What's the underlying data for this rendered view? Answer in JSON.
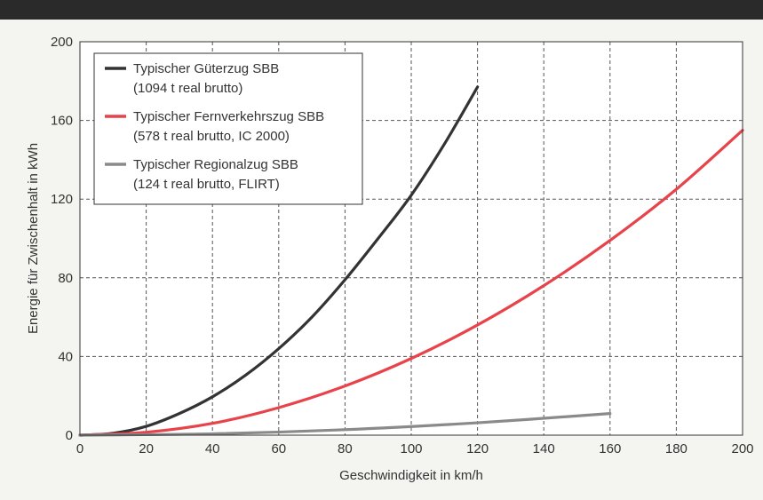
{
  "chart_data": {
    "type": "line",
    "title": "",
    "xlabel": "Geschwindigkeit in km/h",
    "ylabel": "Energie für Zwischenhalt in kWh",
    "xlim": [
      0,
      200
    ],
    "ylim": [
      0,
      200
    ],
    "xticks": [
      0,
      20,
      40,
      60,
      80,
      100,
      120,
      140,
      160,
      180,
      200
    ],
    "yticks": [
      0,
      40,
      80,
      120,
      160,
      200
    ],
    "grid": true,
    "legend_position": "top-left",
    "series": [
      {
        "name": "Typischer Güterzug SBB",
        "subtitle": "(1094 t real brutto)",
        "color": "#333333",
        "x": [
          0,
          10,
          20,
          30,
          40,
          50,
          60,
          70,
          80,
          90,
          100,
          110,
          120
        ],
        "y": [
          0,
          1,
          4.5,
          11,
          19.5,
          30.5,
          44,
          60,
          79,
          100,
          122,
          148,
          177
        ]
      },
      {
        "name": "Typischer Fernverkehrszug SBB",
        "subtitle": "(578 t real brutto, IC 2000)",
        "color": "#e8424a",
        "x": [
          0,
          20,
          40,
          60,
          80,
          100,
          120,
          140,
          160,
          180,
          200
        ],
        "y": [
          0,
          1.5,
          6,
          14,
          25,
          39,
          56,
          76,
          99,
          125,
          155
        ]
      },
      {
        "name": "Typischer Regionalzug SBB",
        "subtitle": "(124 t real brutto, FLIRT)",
        "color": "#8a8a8a",
        "x": [
          0,
          40,
          80,
          120,
          160
        ],
        "y": [
          0,
          0.7,
          2.8,
          6.3,
          11
        ]
      }
    ]
  }
}
